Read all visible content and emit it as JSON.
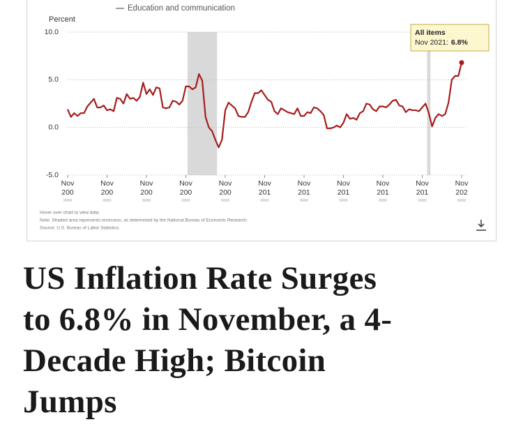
{
  "chart_data": {
    "type": "line",
    "y_label": "Percent",
    "legend_items": [
      "Education and communication"
    ],
    "x": [
      "2001-11",
      "2002-01",
      "2002-03",
      "2002-05",
      "2002-07",
      "2002-09",
      "2002-11",
      "2003-01",
      "2003-03",
      "2003-05",
      "2003-07",
      "2003-09",
      "2003-11",
      "2004-01",
      "2004-03",
      "2004-05",
      "2004-07",
      "2004-09",
      "2004-11",
      "2005-01",
      "2005-03",
      "2005-05",
      "2005-07",
      "2005-09",
      "2005-11",
      "2006-01",
      "2006-03",
      "2006-05",
      "2006-07",
      "2006-09",
      "2006-11",
      "2007-01",
      "2007-03",
      "2007-05",
      "2007-07",
      "2007-09",
      "2007-11",
      "2008-01",
      "2008-03",
      "2008-05",
      "2008-07",
      "2008-09",
      "2008-11",
      "2009-01",
      "2009-03",
      "2009-05",
      "2009-07",
      "2009-09",
      "2009-11",
      "2010-01",
      "2010-03",
      "2010-05",
      "2010-07",
      "2010-09",
      "2010-11",
      "2011-01",
      "2011-03",
      "2011-05",
      "2011-07",
      "2011-09",
      "2011-11",
      "2012-01",
      "2012-03",
      "2012-05",
      "2012-07",
      "2012-09",
      "2012-11",
      "2013-01",
      "2013-03",
      "2013-05",
      "2013-07",
      "2013-09",
      "2013-11",
      "2014-01",
      "2014-03",
      "2014-05",
      "2014-07",
      "2014-09",
      "2014-11",
      "2015-01",
      "2015-03",
      "2015-05",
      "2015-07",
      "2015-09",
      "2015-11",
      "2016-01",
      "2016-03",
      "2016-05",
      "2016-07",
      "2016-09",
      "2016-11",
      "2017-01",
      "2017-03",
      "2017-05",
      "2017-07",
      "2017-09",
      "2017-11",
      "2018-01",
      "2018-03",
      "2018-05",
      "2018-07",
      "2018-09",
      "2018-11",
      "2019-01",
      "2019-03",
      "2019-05",
      "2019-07",
      "2019-09",
      "2019-11",
      "2020-01",
      "2020-03",
      "2020-05",
      "2020-07",
      "2020-09",
      "2020-11",
      "2021-01",
      "2021-03",
      "2021-05",
      "2021-07",
      "2021-09",
      "2021-11"
    ],
    "series": [
      {
        "name": "All items",
        "color": "#a51c1c",
        "values": [
          1.9,
          1.1,
          1.5,
          1.2,
          1.5,
          1.5,
          2.2,
          2.6,
          3.0,
          2.1,
          2.1,
          2.3,
          1.8,
          1.9,
          1.7,
          3.1,
          3.0,
          2.5,
          3.5,
          3.0,
          3.1,
          2.8,
          3.2,
          4.7,
          3.5,
          4.0,
          3.4,
          4.2,
          4.1,
          2.1,
          2.0,
          2.1,
          2.8,
          2.7,
          2.4,
          2.8,
          4.3,
          4.3,
          4.0,
          4.2,
          5.6,
          4.9,
          1.1,
          0.0,
          -0.4,
          -1.3,
          -2.1,
          -1.3,
          1.8,
          2.6,
          2.3,
          2.0,
          1.2,
          1.1,
          1.1,
          1.6,
          2.7,
          3.6,
          3.6,
          3.9,
          3.4,
          2.9,
          2.7,
          1.7,
          1.4,
          2.0,
          1.8,
          1.6,
          1.5,
          1.4,
          2.0,
          1.2,
          1.2,
          1.6,
          1.5,
          2.1,
          2.0,
          1.7,
          1.3,
          -0.1,
          -0.1,
          0.0,
          0.2,
          0.0,
          0.5,
          1.4,
          0.9,
          1.0,
          0.8,
          1.5,
          1.7,
          2.5,
          2.4,
          1.9,
          1.7,
          2.2,
          2.2,
          2.1,
          2.4,
          2.8,
          2.9,
          2.3,
          2.2,
          1.6,
          1.9,
          1.8,
          1.8,
          1.7,
          2.1,
          2.5,
          1.5,
          0.1,
          1.0,
          1.4,
          1.2,
          1.4,
          2.6,
          5.0,
          5.4,
          5.4,
          6.8
        ]
      }
    ],
    "tooltip": {
      "date": "Nov 2021:",
      "value": "6.8%"
    },
    "recessions": [
      [
        "2007-12",
        "2009-06"
      ],
      [
        "2020-02",
        "2020-04"
      ]
    ],
    "xlim": [
      "2001-11",
      "2021-11"
    ],
    "xticks": [
      {
        "value": "2001-11",
        "label": [
          "Nov",
          "200"
        ]
      },
      {
        "value": "2003-11",
        "label": [
          "Nov",
          "200"
        ]
      },
      {
        "value": "2005-11",
        "label": [
          "Nov",
          "200"
        ]
      },
      {
        "value": "2007-11",
        "label": [
          "Nov",
          "200"
        ]
      },
      {
        "value": "2009-11",
        "label": [
          "Nov",
          "200"
        ]
      },
      {
        "value": "2011-11",
        "label": [
          "Nov",
          "201"
        ]
      },
      {
        "value": "2013-11",
        "label": [
          "Nov",
          "201"
        ]
      },
      {
        "value": "2015-11",
        "label": [
          "Nov",
          "201"
        ]
      },
      {
        "value": "2017-11",
        "label": [
          "Nov",
          "201"
        ]
      },
      {
        "value": "2019-11",
        "label": [
          "Nov",
          "201"
        ]
      },
      {
        "value": "2021-11",
        "label": [
          "Nov",
          "202"
        ]
      }
    ],
    "ylim": [
      -5,
      10
    ],
    "yticks": [
      {
        "value": 10,
        "label": "10.0"
      },
      {
        "value": 5,
        "label": "5.0"
      },
      {
        "value": 0,
        "label": "0.0"
      },
      {
        "value": -5,
        "label": "-5.0"
      }
    ],
    "grid": true,
    "notes": [
      "Hover over chart to view data.",
      "Note: Shaded area represents recession, as determined by the National Bureau of Economic Research.",
      "Source: U.S. Bureau of Labor Statistics."
    ]
  },
  "headline": [
    "US Inflation Rate Surges",
    "to 6.8% in November, a 4-",
    "Decade High; Bitcoin",
    "Jumps"
  ]
}
